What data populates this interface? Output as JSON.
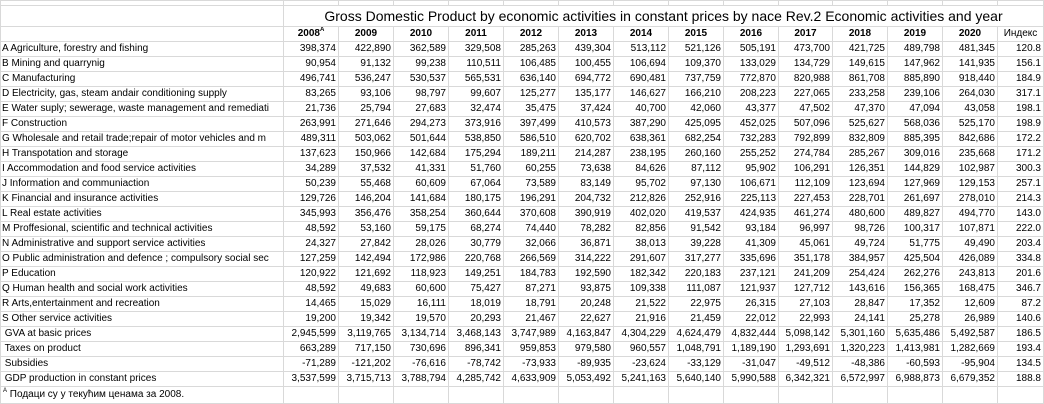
{
  "title": "Gross Domestic Product by economic activities in constant prices by nace Rev.2 Economic activities and year",
  "headers": [
    "2008",
    "2009",
    "2010",
    "2011",
    "2012",
    "2013",
    "2014",
    "2015",
    "2016",
    "2017",
    "2018",
    "2019",
    "2020",
    "Индекс"
  ],
  "first_header_marker": "A",
  "rows": [
    {
      "label": "A Agriculture, forestry and fishing",
      "values": [
        "398,374",
        "422,890",
        "362,589",
        "329,508",
        "285,263",
        "439,304",
        "513,112",
        "521,126",
        "505,191",
        "473,700",
        "421,725",
        "489,798",
        "481,345",
        "120.8"
      ]
    },
    {
      "label": "B Mining and quarrynig",
      "values": [
        "90,954",
        "91,132",
        "99,238",
        "110,511",
        "106,485",
        "100,455",
        "106,694",
        "109,370",
        "133,029",
        "134,729",
        "149,615",
        "147,962",
        "141,935",
        "156.1"
      ]
    },
    {
      "label": "C Manufacturing",
      "values": [
        "496,741",
        "536,247",
        "530,537",
        "565,531",
        "636,140",
        "694,772",
        "690,481",
        "737,759",
        "772,870",
        "820,988",
        "861,708",
        "885,890",
        "918,440",
        "184.9"
      ]
    },
    {
      "label": "D Electricity, gas, steam andair conditioning supply",
      "values": [
        "83,265",
        "93,106",
        "98,797",
        "99,607",
        "125,277",
        "135,177",
        "146,627",
        "166,210",
        "208,223",
        "227,065",
        "233,258",
        "239,106",
        "264,030",
        "317.1"
      ]
    },
    {
      "label": "E Water suply; sewerage, waste management and remediati",
      "values": [
        "21,736",
        "25,794",
        "27,683",
        "32,474",
        "35,475",
        "37,424",
        "40,700",
        "42,060",
        "43,377",
        "47,502",
        "47,370",
        "47,094",
        "43,058",
        "198.1"
      ]
    },
    {
      "label": "F Construction",
      "values": [
        "263,991",
        "271,646",
        "294,273",
        "373,916",
        "397,499",
        "410,573",
        "387,290",
        "425,095",
        "452,025",
        "507,096",
        "525,627",
        "568,036",
        "525,170",
        "198.9"
      ]
    },
    {
      "label": "G Wholesale and retail trade;repair of motor vehicles and m",
      "values": [
        "489,311",
        "503,062",
        "501,644",
        "538,850",
        "586,510",
        "620,702",
        "638,361",
        "682,254",
        "732,283",
        "792,899",
        "832,809",
        "885,395",
        "842,686",
        "172.2"
      ]
    },
    {
      "label": "H Transpotation and storage",
      "values": [
        "137,623",
        "150,966",
        "142,684",
        "175,294",
        "189,211",
        "214,287",
        "238,195",
        "260,160",
        "255,252",
        "274,784",
        "285,267",
        "309,016",
        "235,668",
        "171.2"
      ]
    },
    {
      "label": "I Accommodation and food service activities",
      "values": [
        "34,289",
        "37,532",
        "41,331",
        "51,760",
        "60,255",
        "73,638",
        "84,626",
        "87,112",
        "95,902",
        "106,291",
        "126,351",
        "144,829",
        "102,987",
        "300.3"
      ]
    },
    {
      "label": "J Information and communiaction",
      "values": [
        "50,239",
        "55,468",
        "60,609",
        "67,064",
        "73,589",
        "83,149",
        "95,702",
        "97,130",
        "106,671",
        "112,109",
        "123,694",
        "127,969",
        "129,153",
        "257.1"
      ]
    },
    {
      "label": "K Financial and insurance activities",
      "values": [
        "129,726",
        "146,204",
        "141,684",
        "180,175",
        "196,291",
        "204,732",
        "212,826",
        "252,916",
        "225,113",
        "227,453",
        "228,701",
        "261,697",
        "278,010",
        "214.3"
      ]
    },
    {
      "label": "L Real estate activities",
      "values": [
        "345,993",
        "356,476",
        "358,254",
        "360,644",
        "370,608",
        "390,919",
        "402,020",
        "419,537",
        "424,935",
        "461,274",
        "480,600",
        "489,827",
        "494,770",
        "143.0"
      ]
    },
    {
      "label": "M Proffesional, scientific and technical activities",
      "values": [
        "48,592",
        "53,160",
        "59,175",
        "68,274",
        "74,440",
        "78,282",
        "82,856",
        "91,542",
        "93,184",
        "96,997",
        "98,726",
        "100,317",
        "107,871",
        "222.0"
      ]
    },
    {
      "label": "N Administrative and support service activities",
      "values": [
        "24,327",
        "27,842",
        "28,026",
        "30,779",
        "32,066",
        "36,871",
        "38,013",
        "39,228",
        "41,309",
        "45,061",
        "49,724",
        "51,775",
        "49,490",
        "203.4"
      ]
    },
    {
      "label": "O Public administration and defence ; compulsory social sec",
      "values": [
        "127,259",
        "142,494",
        "172,986",
        "220,768",
        "266,569",
        "314,222",
        "291,607",
        "317,277",
        "335,696",
        "351,178",
        "384,957",
        "425,504",
        "426,089",
        "334.8"
      ]
    },
    {
      "label": "P Education",
      "values": [
        "120,922",
        "121,692",
        "118,923",
        "149,251",
        "184,783",
        "192,590",
        "182,342",
        "220,183",
        "237,121",
        "241,209",
        "254,424",
        "262,276",
        "243,813",
        "201.6"
      ]
    },
    {
      "label": "Q Human health and social work activities",
      "values": [
        "48,592",
        "49,683",
        "60,600",
        "75,427",
        "87,271",
        "93,875",
        "109,338",
        "111,087",
        "121,937",
        "127,712",
        "143,616",
        "156,365",
        "168,475",
        "346.7"
      ]
    },
    {
      "label": "R Arts,entertainment and recreation",
      "values": [
        "14,465",
        "15,029",
        "16,111",
        "18,019",
        "18,791",
        "20,248",
        "21,522",
        "22,975",
        "26,315",
        "27,103",
        "28,847",
        "17,352",
        "12,609",
        "87.2"
      ]
    },
    {
      "label": "S Other service activities",
      "values": [
        "19,200",
        "19,342",
        "19,570",
        "20,293",
        "21,467",
        "22,627",
        "21,916",
        "21,459",
        "22,012",
        "22,993",
        "24,141",
        "25,278",
        "26,989",
        "140.6"
      ]
    },
    {
      "label": " GVA at basic prices",
      "values": [
        "2,945,599",
        "3,119,765",
        "3,134,714",
        "3,468,143",
        "3,747,989",
        "4,163,847",
        "4,304,229",
        "4,624,479",
        "4,832,444",
        "5,098,142",
        "5,301,160",
        "5,635,486",
        "5,492,587",
        "186.5"
      ]
    },
    {
      "label": " Taxes on product",
      "values": [
        "663,289",
        "717,150",
        "730,696",
        "896,341",
        "959,853",
        "979,580",
        "960,557",
        "1,048,791",
        "1,189,190",
        "1,293,691",
        "1,320,223",
        "1,413,981",
        "1,282,669",
        "193.4"
      ]
    },
    {
      "label": " Subsidies",
      "values": [
        "-71,289",
        "-121,202",
        "-76,616",
        "-78,742",
        "-73,933",
        "-89,935",
        "-23,624",
        "-33,129",
        "-31,047",
        "-49,512",
        "-48,386",
        "-60,593",
        "-95,904",
        "134.5"
      ]
    },
    {
      "label": " GDP production in constant prices",
      "values": [
        "3,537,599",
        "3,715,713",
        "3,788,794",
        "4,285,742",
        "4,633,909",
        "5,053,492",
        "5,241,163",
        "5,640,140",
        "5,990,588",
        "6,342,321",
        "6,572,997",
        "6,988,873",
        "6,679,352",
        "188.8"
      ]
    }
  ],
  "footnote": {
    "marker": "A",
    "text": " Подаци су у текућим ценама за 2008."
  }
}
